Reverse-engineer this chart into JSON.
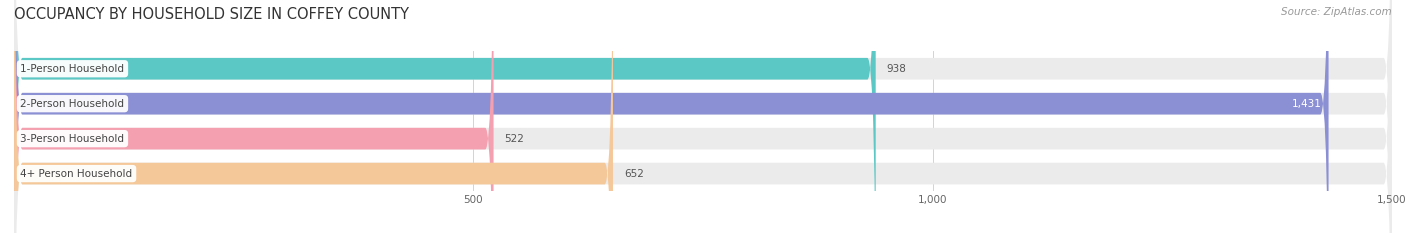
{
  "title": "OCCUPANCY BY HOUSEHOLD SIZE IN COFFEY COUNTY",
  "source": "Source: ZipAtlas.com",
  "categories": [
    "1-Person Household",
    "2-Person Household",
    "3-Person Household",
    "4+ Person Household"
  ],
  "values": [
    938,
    1431,
    522,
    652
  ],
  "bar_colors": [
    "#5bc8c5",
    "#8b8fd4",
    "#f4a0b0",
    "#f5c89a"
  ],
  "background_color": "#ffffff",
  "bar_bg_color": "#ebebeb",
  "xlim_max": 1500,
  "xticks": [
    500,
    1000,
    1500
  ],
  "title_fontsize": 10.5,
  "label_fontsize": 7.5,
  "value_fontsize": 7.5,
  "source_fontsize": 7.5
}
